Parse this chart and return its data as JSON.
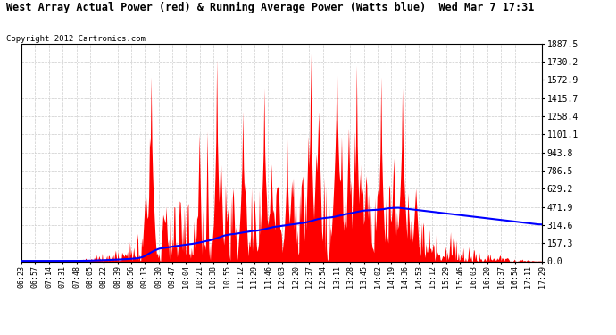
{
  "title": "West Array Actual Power (red) & Running Average Power (Watts blue)  Wed Mar 7 17:31",
  "copyright": "Copyright 2012 Cartronics.com",
  "ymax": 1887.5,
  "ymin": 0.0,
  "yticks": [
    0.0,
    157.3,
    314.6,
    471.9,
    629.2,
    786.5,
    943.8,
    1101.1,
    1258.4,
    1415.7,
    1572.9,
    1730.2,
    1887.5
  ],
  "xtick_labels": [
    "06:23",
    "06:57",
    "07:14",
    "07:31",
    "07:48",
    "08:05",
    "08:22",
    "08:39",
    "08:56",
    "09:13",
    "09:30",
    "09:47",
    "10:04",
    "10:21",
    "10:38",
    "10:55",
    "11:12",
    "11:29",
    "11:46",
    "12:03",
    "12:20",
    "12:37",
    "12:54",
    "13:11",
    "13:28",
    "13:45",
    "14:02",
    "14:19",
    "14:36",
    "14:53",
    "15:12",
    "15:29",
    "15:46",
    "16:03",
    "16:20",
    "16:37",
    "16:54",
    "17:11",
    "17:29"
  ],
  "bg_color": "#ffffff",
  "grid_color": "#cccccc",
  "actual_color": "red",
  "avg_color": "blue"
}
